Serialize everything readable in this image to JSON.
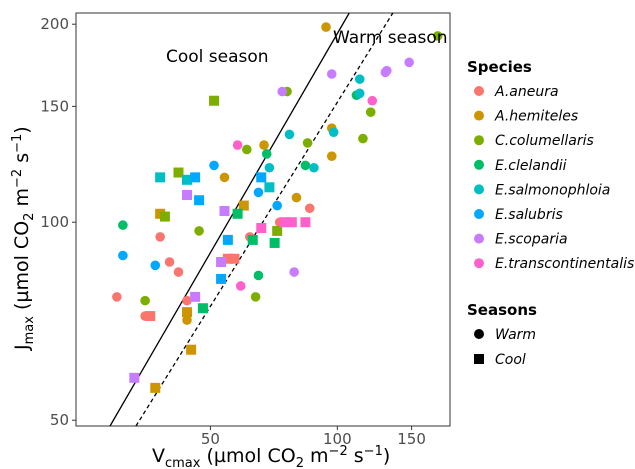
{
  "chart_data": {
    "type": "scatter",
    "xlabel": "V_cmax (µmol CO_2 m^-2 s^-1)",
    "ylabel": "J_max (µmol CO_2 m^-2 s^-1)",
    "xlabel_parts": {
      "main": "V",
      "sub": "cmax",
      "mid": " (µmol CO",
      "co2sub": "2",
      "m": " m",
      "msup": "−2",
      "s": " s",
      "ssup": "−1",
      "end": ")"
    },
    "ylabel_parts": {
      "main": "J",
      "sub": "max",
      "mid": " (µmol CO",
      "co2sub": "2",
      "m": " m",
      "msup": "−2",
      "s": " s",
      "ssup": "−1",
      "end": ")"
    },
    "x_scale": "log",
    "y_scale": "log",
    "xlim": [
      24,
      185
    ],
    "ylim": [
      49,
      208
    ],
    "x_ticks": [
      50,
      100,
      150
    ],
    "y_ticks": [
      50,
      100,
      150,
      200
    ],
    "grid": false,
    "legend_position": "right",
    "annotations": [
      {
        "text": "Cool season",
        "line": "solid"
      },
      {
        "text": "Warm season",
        "line": "dashed"
      }
    ],
    "lines": [
      {
        "name": "Cool season",
        "style": "solid",
        "points": [
          [
            28.9,
            49
          ],
          [
            106.7,
            208
          ]
        ]
      },
      {
        "name": "Warm season",
        "style": "dashed",
        "points": [
          [
            33.3,
            49
          ],
          [
            135.4,
            208
          ]
        ]
      }
    ],
    "legend": {
      "species_title": "Species",
      "species": [
        {
          "name": "A.aneura",
          "color": "#F8766D"
        },
        {
          "name": "A.hemiteles",
          "color": "#CD9600"
        },
        {
          "name": "C.columellaris",
          "color": "#7CAE00"
        },
        {
          "name": "E.clelandii",
          "color": "#00BE67"
        },
        {
          "name": "E.salmonophloia",
          "color": "#00BFC4"
        },
        {
          "name": "E.salubris",
          "color": "#00A9FF"
        },
        {
          "name": "E.scoparia",
          "color": "#C77CFF"
        },
        {
          "name": "E.transcontinentalis",
          "color": "#FF61CC"
        }
      ],
      "seasons_title": "Seasons",
      "seasons": [
        {
          "name": "Warm",
          "shape": "circle"
        },
        {
          "name": "Cool",
          "shape": "square"
        }
      ]
    },
    "series": [
      {
        "name": "A.aneura",
        "color": "#F8766D",
        "points": [
          {
            "x": 30,
            "y": 77,
            "season": "Warm"
          },
          {
            "x": 35,
            "y": 72,
            "season": "Warm"
          },
          {
            "x": 38,
            "y": 95,
            "season": "Warm"
          },
          {
            "x": 40,
            "y": 87,
            "season": "Warm"
          },
          {
            "x": 42,
            "y": 84,
            "season": "Warm"
          },
          {
            "x": 44,
            "y": 76,
            "season": "Warm"
          },
          {
            "x": 62,
            "y": 95,
            "season": "Warm"
          },
          {
            "x": 73,
            "y": 100,
            "season": "Warm"
          },
          {
            "x": 86,
            "y": 105,
            "season": "Warm"
          },
          {
            "x": 36,
            "y": 72,
            "season": "Cool"
          },
          {
            "x": 55,
            "y": 88,
            "season": "Cool"
          },
          {
            "x": 57,
            "y": 88,
            "season": "Cool"
          }
        ]
      },
      {
        "name": "A.hemiteles",
        "color": "#CD9600",
        "points": [
          {
            "x": 44,
            "y": 71,
            "season": "Warm"
          },
          {
            "x": 54,
            "y": 117,
            "season": "Warm"
          },
          {
            "x": 67,
            "y": 131,
            "season": "Warm"
          },
          {
            "x": 80,
            "y": 109,
            "season": "Warm"
          },
          {
            "x": 94,
            "y": 198,
            "season": "Warm"
          },
          {
            "x": 97,
            "y": 139,
            "season": "Warm"
          },
          {
            "x": 97,
            "y": 126,
            "season": "Warm"
          },
          {
            "x": 38,
            "y": 103,
            "season": "Cool"
          },
          {
            "x": 44,
            "y": 73,
            "season": "Cool"
          },
          {
            "x": 45,
            "y": 64,
            "season": "Cool"
          },
          {
            "x": 37,
            "y": 56,
            "season": "Cool"
          },
          {
            "x": 60,
            "y": 106,
            "season": "Cool"
          }
        ]
      },
      {
        "name": "C.columellaris",
        "color": "#7CAE00",
        "points": [
          {
            "x": 35,
            "y": 76,
            "season": "Warm"
          },
          {
            "x": 47,
            "y": 97,
            "season": "Warm"
          },
          {
            "x": 61,
            "y": 129,
            "season": "Warm"
          },
          {
            "x": 64,
            "y": 77,
            "season": "Warm"
          },
          {
            "x": 76,
            "y": 158,
            "season": "Warm"
          },
          {
            "x": 85,
            "y": 132,
            "season": "Warm"
          },
          {
            "x": 115,
            "y": 134,
            "season": "Warm"
          },
          {
            "x": 120,
            "y": 147,
            "season": "Warm"
          },
          {
            "x": 173,
            "y": 192,
            "season": "Warm"
          },
          {
            "x": 42,
            "y": 119,
            "season": "Cool"
          },
          {
            "x": 51,
            "y": 153,
            "season": "Cool"
          },
          {
            "x": 72,
            "y": 97,
            "season": "Cool"
          },
          {
            "x": 39,
            "y": 102,
            "season": "Cool"
          }
        ]
      },
      {
        "name": "E.clelandii",
        "color": "#00BE67",
        "points": [
          {
            "x": 31,
            "y": 99,
            "season": "Warm"
          },
          {
            "x": 65,
            "y": 83,
            "season": "Warm"
          },
          {
            "x": 68,
            "y": 127,
            "season": "Warm"
          },
          {
            "x": 84,
            "y": 122,
            "season": "Warm"
          },
          {
            "x": 111,
            "y": 156,
            "season": "Warm"
          },
          {
            "x": 48,
            "y": 74,
            "season": "Cool"
          },
          {
            "x": 58,
            "y": 103,
            "season": "Cool"
          },
          {
            "x": 63,
            "y": 94,
            "season": "Cool"
          },
          {
            "x": 71,
            "y": 93,
            "season": "Cool"
          }
        ]
      },
      {
        "name": "E.salmonophloia",
        "color": "#00BFC4",
        "points": [
          {
            "x": 69,
            "y": 121,
            "season": "Warm"
          },
          {
            "x": 77,
            "y": 136,
            "season": "Warm"
          },
          {
            "x": 88,
            "y": 121,
            "season": "Warm"
          },
          {
            "x": 98,
            "y": 137,
            "season": "Warm"
          },
          {
            "x": 113,
            "y": 157,
            "season": "Warm"
          },
          {
            "x": 113,
            "y": 165,
            "season": "Warm"
          },
          {
            "x": 38,
            "y": 117,
            "season": "Cool"
          },
          {
            "x": 44,
            "y": 116,
            "season": "Cool"
          },
          {
            "x": 69,
            "y": 113,
            "season": "Cool"
          }
        ]
      },
      {
        "name": "E.salubris",
        "color": "#00A9FF",
        "points": [
          {
            "x": 31,
            "y": 89,
            "season": "Warm"
          },
          {
            "x": 37,
            "y": 86,
            "season": "Warm"
          },
          {
            "x": 51,
            "y": 122,
            "season": "Warm"
          },
          {
            "x": 65,
            "y": 111,
            "season": "Warm"
          },
          {
            "x": 72,
            "y": 106,
            "season": "Warm"
          },
          {
            "x": 46,
            "y": 117,
            "season": "Cool"
          },
          {
            "x": 47,
            "y": 108,
            "season": "Cool"
          },
          {
            "x": 53,
            "y": 82,
            "season": "Cool"
          },
          {
            "x": 55,
            "y": 94,
            "season": "Cool"
          },
          {
            "x": 66,
            "y": 117,
            "season": "Cool"
          }
        ]
      },
      {
        "name": "E.scoparia",
        "color": "#C77CFF",
        "points": [
          {
            "x": 74,
            "y": 158,
            "season": "Warm"
          },
          {
            "x": 79,
            "y": 84,
            "season": "Warm"
          },
          {
            "x": 97,
            "y": 168,
            "season": "Warm"
          },
          {
            "x": 130,
            "y": 169,
            "season": "Warm"
          },
          {
            "x": 131,
            "y": 170,
            "season": "Warm"
          },
          {
            "x": 148,
            "y": 175,
            "season": "Warm"
          },
          {
            "x": 33,
            "y": 58,
            "season": "Cool"
          },
          {
            "x": 44,
            "y": 110,
            "season": "Cool"
          },
          {
            "x": 46,
            "y": 77,
            "season": "Cool"
          },
          {
            "x": 53,
            "y": 87,
            "season": "Cool"
          },
          {
            "x": 54,
            "y": 104,
            "season": "Cool"
          }
        ]
      },
      {
        "name": "E.transcontinentalis",
        "color": "#FF61CC",
        "points": [
          {
            "x": 58,
            "y": 131,
            "season": "Warm"
          },
          {
            "x": 59,
            "y": 80,
            "season": "Warm"
          },
          {
            "x": 121,
            "y": 153,
            "season": "Warm"
          },
          {
            "x": 75,
            "y": 100,
            "season": "Cool"
          },
          {
            "x": 78,
            "y": 100,
            "season": "Cool"
          },
          {
            "x": 84,
            "y": 100,
            "season": "Cool"
          },
          {
            "x": 66,
            "y": 98,
            "season": "Cool"
          }
        ]
      }
    ]
  }
}
